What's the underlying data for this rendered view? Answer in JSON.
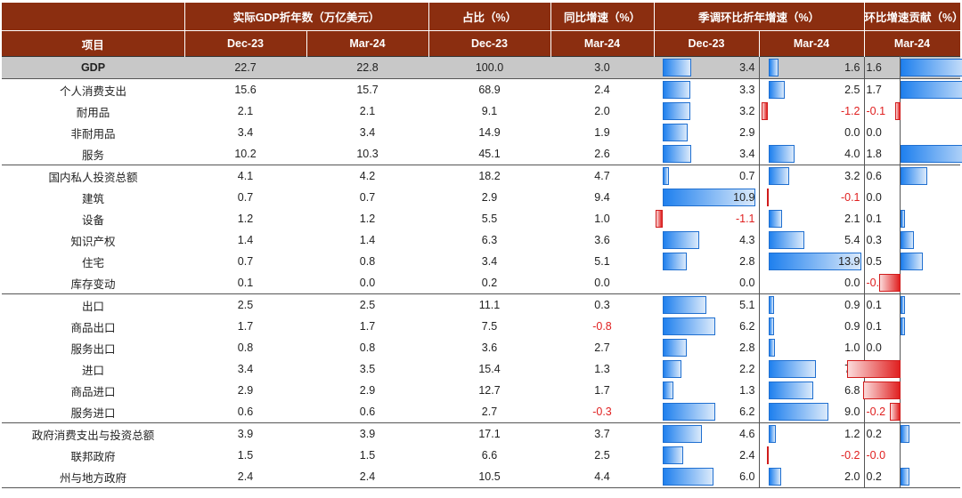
{
  "header": {
    "groups": [
      "实际GDP折年数（万亿美元）",
      "占比（%）",
      "同比增速（%）",
      "季调环比折年增速（%）",
      "环比增速贡献（%）"
    ],
    "item_label": "项目",
    "sub": [
      "Dec-23",
      "Mar-24",
      "Dec-23",
      "Mar-24",
      "Dec-23",
      "Mar-24",
      "Mar-24"
    ]
  },
  "rows": [
    {
      "label": "GDP",
      "gdp_dec": "22.7",
      "gdp_mar": "22.8",
      "share": "100.0",
      "yoy": "3.0",
      "qoq_dec": "3.4",
      "qoq_mar": "1.6",
      "contrib": "1.6"
    },
    {
      "label": "个人消费支出",
      "gdp_dec": "15.6",
      "gdp_mar": "15.7",
      "share": "68.9",
      "yoy": "2.4",
      "qoq_dec": "3.3",
      "qoq_mar": "2.5",
      "contrib": "1.7"
    },
    {
      "label": "耐用品",
      "gdp_dec": "2.1",
      "gdp_mar": "2.1",
      "share": "9.1",
      "yoy": "2.0",
      "qoq_dec": "3.2",
      "qoq_mar": "-1.2",
      "contrib": "-0.1"
    },
    {
      "label": "非耐用品",
      "gdp_dec": "3.4",
      "gdp_mar": "3.4",
      "share": "14.9",
      "yoy": "1.9",
      "qoq_dec": "2.9",
      "qoq_mar": "0.0",
      "contrib": "0.0"
    },
    {
      "label": "服务",
      "gdp_dec": "10.2",
      "gdp_mar": "10.3",
      "share": "45.1",
      "yoy": "2.6",
      "qoq_dec": "3.4",
      "qoq_mar": "4.0",
      "contrib": "1.8"
    },
    {
      "label": "国内私人投资总额",
      "gdp_dec": "4.1",
      "gdp_mar": "4.2",
      "share": "18.2",
      "yoy": "4.7",
      "qoq_dec": "0.7",
      "qoq_mar": "3.2",
      "contrib": "0.6"
    },
    {
      "label": "建筑",
      "gdp_dec": "0.7",
      "gdp_mar": "0.7",
      "share": "2.9",
      "yoy": "9.4",
      "qoq_dec": "10.9",
      "qoq_mar": "-0.1",
      "contrib": "0.0"
    },
    {
      "label": "设备",
      "gdp_dec": "1.2",
      "gdp_mar": "1.2",
      "share": "5.5",
      "yoy": "1.0",
      "qoq_dec": "-1.1",
      "qoq_mar": "2.1",
      "contrib": "0.1"
    },
    {
      "label": "知识产权",
      "gdp_dec": "1.4",
      "gdp_mar": "1.4",
      "share": "6.3",
      "yoy": "3.6",
      "qoq_dec": "4.3",
      "qoq_mar": "5.4",
      "contrib": "0.3"
    },
    {
      "label": "住宅",
      "gdp_dec": "0.7",
      "gdp_mar": "0.8",
      "share": "3.4",
      "yoy": "5.1",
      "qoq_dec": "2.8",
      "qoq_mar": "13.9",
      "contrib": "0.5"
    },
    {
      "label": "库存变动",
      "gdp_dec": "0.1",
      "gdp_mar": "0.0",
      "share": "0.2",
      "yoy": "0.0",
      "qoq_dec": "0.0",
      "qoq_mar": "0.0",
      "contrib": "-0.4"
    },
    {
      "label": "出口",
      "gdp_dec": "2.5",
      "gdp_mar": "2.5",
      "share": "11.1",
      "yoy": "0.3",
      "qoq_dec": "5.1",
      "qoq_mar": "0.9",
      "contrib": "0.1"
    },
    {
      "label": "商品出口",
      "gdp_dec": "1.7",
      "gdp_mar": "1.7",
      "share": "7.5",
      "yoy": "-0.8",
      "qoq_dec": "6.2",
      "qoq_mar": "0.9",
      "contrib": "0.1"
    },
    {
      "label": "服务出口",
      "gdp_dec": "0.8",
      "gdp_mar": "0.8",
      "share": "3.6",
      "yoy": "2.7",
      "qoq_dec": "2.8",
      "qoq_mar": "1.0",
      "contrib": "0.0"
    },
    {
      "label": "进口",
      "gdp_dec": "3.4",
      "gdp_mar": "3.5",
      "share": "15.4",
      "yoy": "1.3",
      "qoq_dec": "2.2",
      "qoq_mar": "7.2",
      "contrib": "-1.0"
    },
    {
      "label": "商品进口",
      "gdp_dec": "2.9",
      "gdp_mar": "2.9",
      "share": "12.7",
      "yoy": "1.7",
      "qoq_dec": "1.3",
      "qoq_mar": "6.8",
      "contrib": "-0.7"
    },
    {
      "label": "服务进口",
      "gdp_dec": "0.6",
      "gdp_mar": "0.6",
      "share": "2.7",
      "yoy": "-0.3",
      "qoq_dec": "6.2",
      "qoq_mar": "9.0",
      "contrib": "-0.2"
    },
    {
      "label": "政府消费支出与投资总额",
      "gdp_dec": "3.9",
      "gdp_mar": "3.9",
      "share": "17.1",
      "yoy": "3.7",
      "qoq_dec": "4.6",
      "qoq_mar": "1.2",
      "contrib": "0.2"
    },
    {
      "label": "联邦政府",
      "gdp_dec": "1.5",
      "gdp_mar": "1.5",
      "share": "6.6",
      "yoy": "2.5",
      "qoq_dec": "2.4",
      "qoq_mar": "-0.2",
      "contrib": "-0.0"
    },
    {
      "label": "州与地方政府",
      "gdp_dec": "2.4",
      "gdp_mar": "2.4",
      "share": "10.5",
      "yoy": "4.4",
      "qoq_dec": "6.0",
      "qoq_mar": "2.0",
      "contrib": "0.2"
    }
  ],
  "colors": {
    "header_bg": "#8b2e10",
    "bar_positive": "#1f80ee",
    "bar_negative": "#e02020",
    "gdp_row_bg": "#c8c8c8"
  }
}
